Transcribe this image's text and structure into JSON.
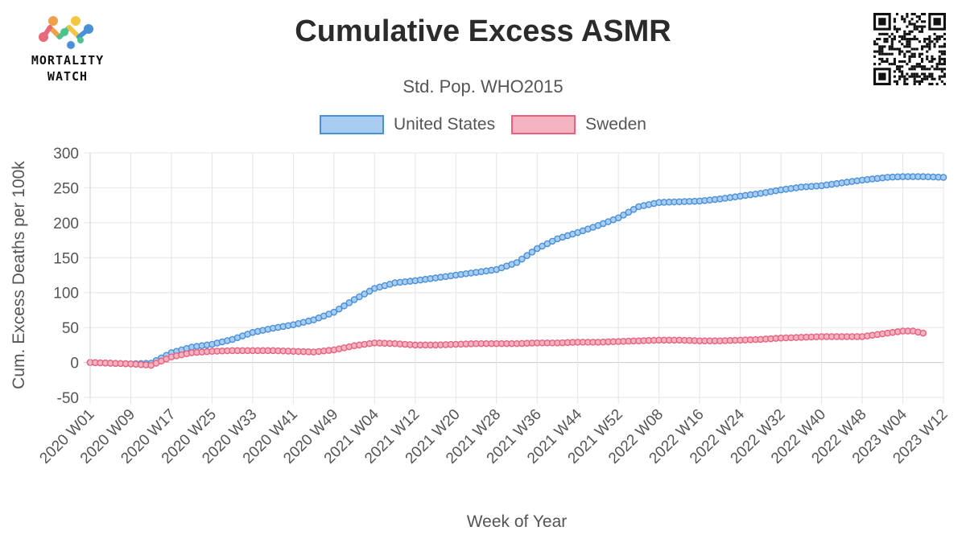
{
  "logo": {
    "word_top": "MORTALITY",
    "word_bottom": "WATCH"
  },
  "chart_data": {
    "type": "line",
    "title": "Cumulative Excess ASMR",
    "subtitle": "Std. Pop. WHO2015",
    "xlabel": "Week of Year",
    "ylabel": "Cum. Excess Deaths per 100k",
    "ylim": [
      -50,
      300
    ],
    "yticks": [
      -50,
      0,
      50,
      100,
      150,
      200,
      250,
      300
    ],
    "grid": true,
    "legend_position": "top-center",
    "xtick_labels": [
      "2020 W01",
      "2020 W09",
      "2020 W17",
      "2020 W25",
      "2020 W33",
      "2020 W41",
      "2020 W49",
      "2021 W04",
      "2021 W12",
      "2021 W20",
      "2021 W28",
      "2021 W36",
      "2021 W44",
      "2021 W52",
      "2022 W08",
      "2022 W16",
      "2022 W24",
      "2022 W32",
      "2022 W40",
      "2022 W48",
      "2023 W04",
      "2023 W12"
    ],
    "series": [
      {
        "name": "United States",
        "color": "#4a90d9",
        "fill": "#a8cdf0",
        "points": [
          [
            "2020 W01",
            0
          ],
          [
            "2020 W05",
            -1
          ],
          [
            "2020 W09",
            -2
          ],
          [
            "2020 W13",
            -1
          ],
          [
            "2020 W17",
            14
          ],
          [
            "2020 W21",
            22
          ],
          [
            "2020 W25",
            26
          ],
          [
            "2020 W29",
            33
          ],
          [
            "2020 W33",
            43
          ],
          [
            "2020 W37",
            49
          ],
          [
            "2020 W41",
            54
          ],
          [
            "2020 W45",
            61
          ],
          [
            "2020 W49",
            72
          ],
          [
            "2020 W53",
            90
          ],
          [
            "2021 W04",
            106
          ],
          [
            "2021 W08",
            114
          ],
          [
            "2021 W12",
            117
          ],
          [
            "2021 W16",
            121
          ],
          [
            "2021 W20",
            125
          ],
          [
            "2021 W24",
            129
          ],
          [
            "2021 W28",
            133
          ],
          [
            "2021 W32",
            143
          ],
          [
            "2021 W36",
            163
          ],
          [
            "2021 W40",
            177
          ],
          [
            "2021 W44",
            186
          ],
          [
            "2021 W48",
            196
          ],
          [
            "2021 W52",
            207
          ],
          [
            "2022 W04",
            223
          ],
          [
            "2022 W08",
            229
          ],
          [
            "2022 W12",
            230
          ],
          [
            "2022 W16",
            231
          ],
          [
            "2022 W20",
            234
          ],
          [
            "2022 W24",
            238
          ],
          [
            "2022 W28",
            242
          ],
          [
            "2022 W32",
            247
          ],
          [
            "2022 W36",
            251
          ],
          [
            "2022 W40",
            253
          ],
          [
            "2022 W44",
            257
          ],
          [
            "2022 W48",
            261
          ],
          [
            "2023 W01",
            265
          ],
          [
            "2023 W04",
            266
          ],
          [
            "2023 W08",
            266
          ],
          [
            "2023 W12",
            265
          ]
        ]
      },
      {
        "name": "Sweden",
        "color": "#e8627f",
        "fill": "#f4b3c0",
        "points": [
          [
            "2020 W01",
            0
          ],
          [
            "2020 W05",
            -1
          ],
          [
            "2020 W09",
            -2
          ],
          [
            "2020 W13",
            -4
          ],
          [
            "2020 W17",
            8
          ],
          [
            "2020 W21",
            14
          ],
          [
            "2020 W25",
            16
          ],
          [
            "2020 W29",
            17
          ],
          [
            "2020 W33",
            17
          ],
          [
            "2020 W37",
            17
          ],
          [
            "2020 W41",
            16
          ],
          [
            "2020 W45",
            15
          ],
          [
            "2020 W49",
            18
          ],
          [
            "2020 W53",
            24
          ],
          [
            "2021 W04",
            28
          ],
          [
            "2021 W08",
            27
          ],
          [
            "2021 W12",
            25
          ],
          [
            "2021 W16",
            25
          ],
          [
            "2021 W20",
            26
          ],
          [
            "2021 W24",
            27
          ],
          [
            "2021 W28",
            27
          ],
          [
            "2021 W32",
            27
          ],
          [
            "2021 W36",
            28
          ],
          [
            "2021 W40",
            28
          ],
          [
            "2021 W44",
            29
          ],
          [
            "2021 W48",
            29
          ],
          [
            "2021 W52",
            30
          ],
          [
            "2022 W04",
            31
          ],
          [
            "2022 W08",
            32
          ],
          [
            "2022 W12",
            32
          ],
          [
            "2022 W16",
            31
          ],
          [
            "2022 W20",
            31
          ],
          [
            "2022 W24",
            32
          ],
          [
            "2022 W28",
            33
          ],
          [
            "2022 W32",
            35
          ],
          [
            "2022 W36",
            36
          ],
          [
            "2022 W40",
            37
          ],
          [
            "2022 W44",
            37
          ],
          [
            "2022 W48",
            37
          ],
          [
            "2023 W01",
            42
          ],
          [
            "2023 W04",
            45
          ],
          [
            "2023 W06",
            45
          ],
          [
            "2023 W08",
            42
          ]
        ]
      }
    ]
  }
}
